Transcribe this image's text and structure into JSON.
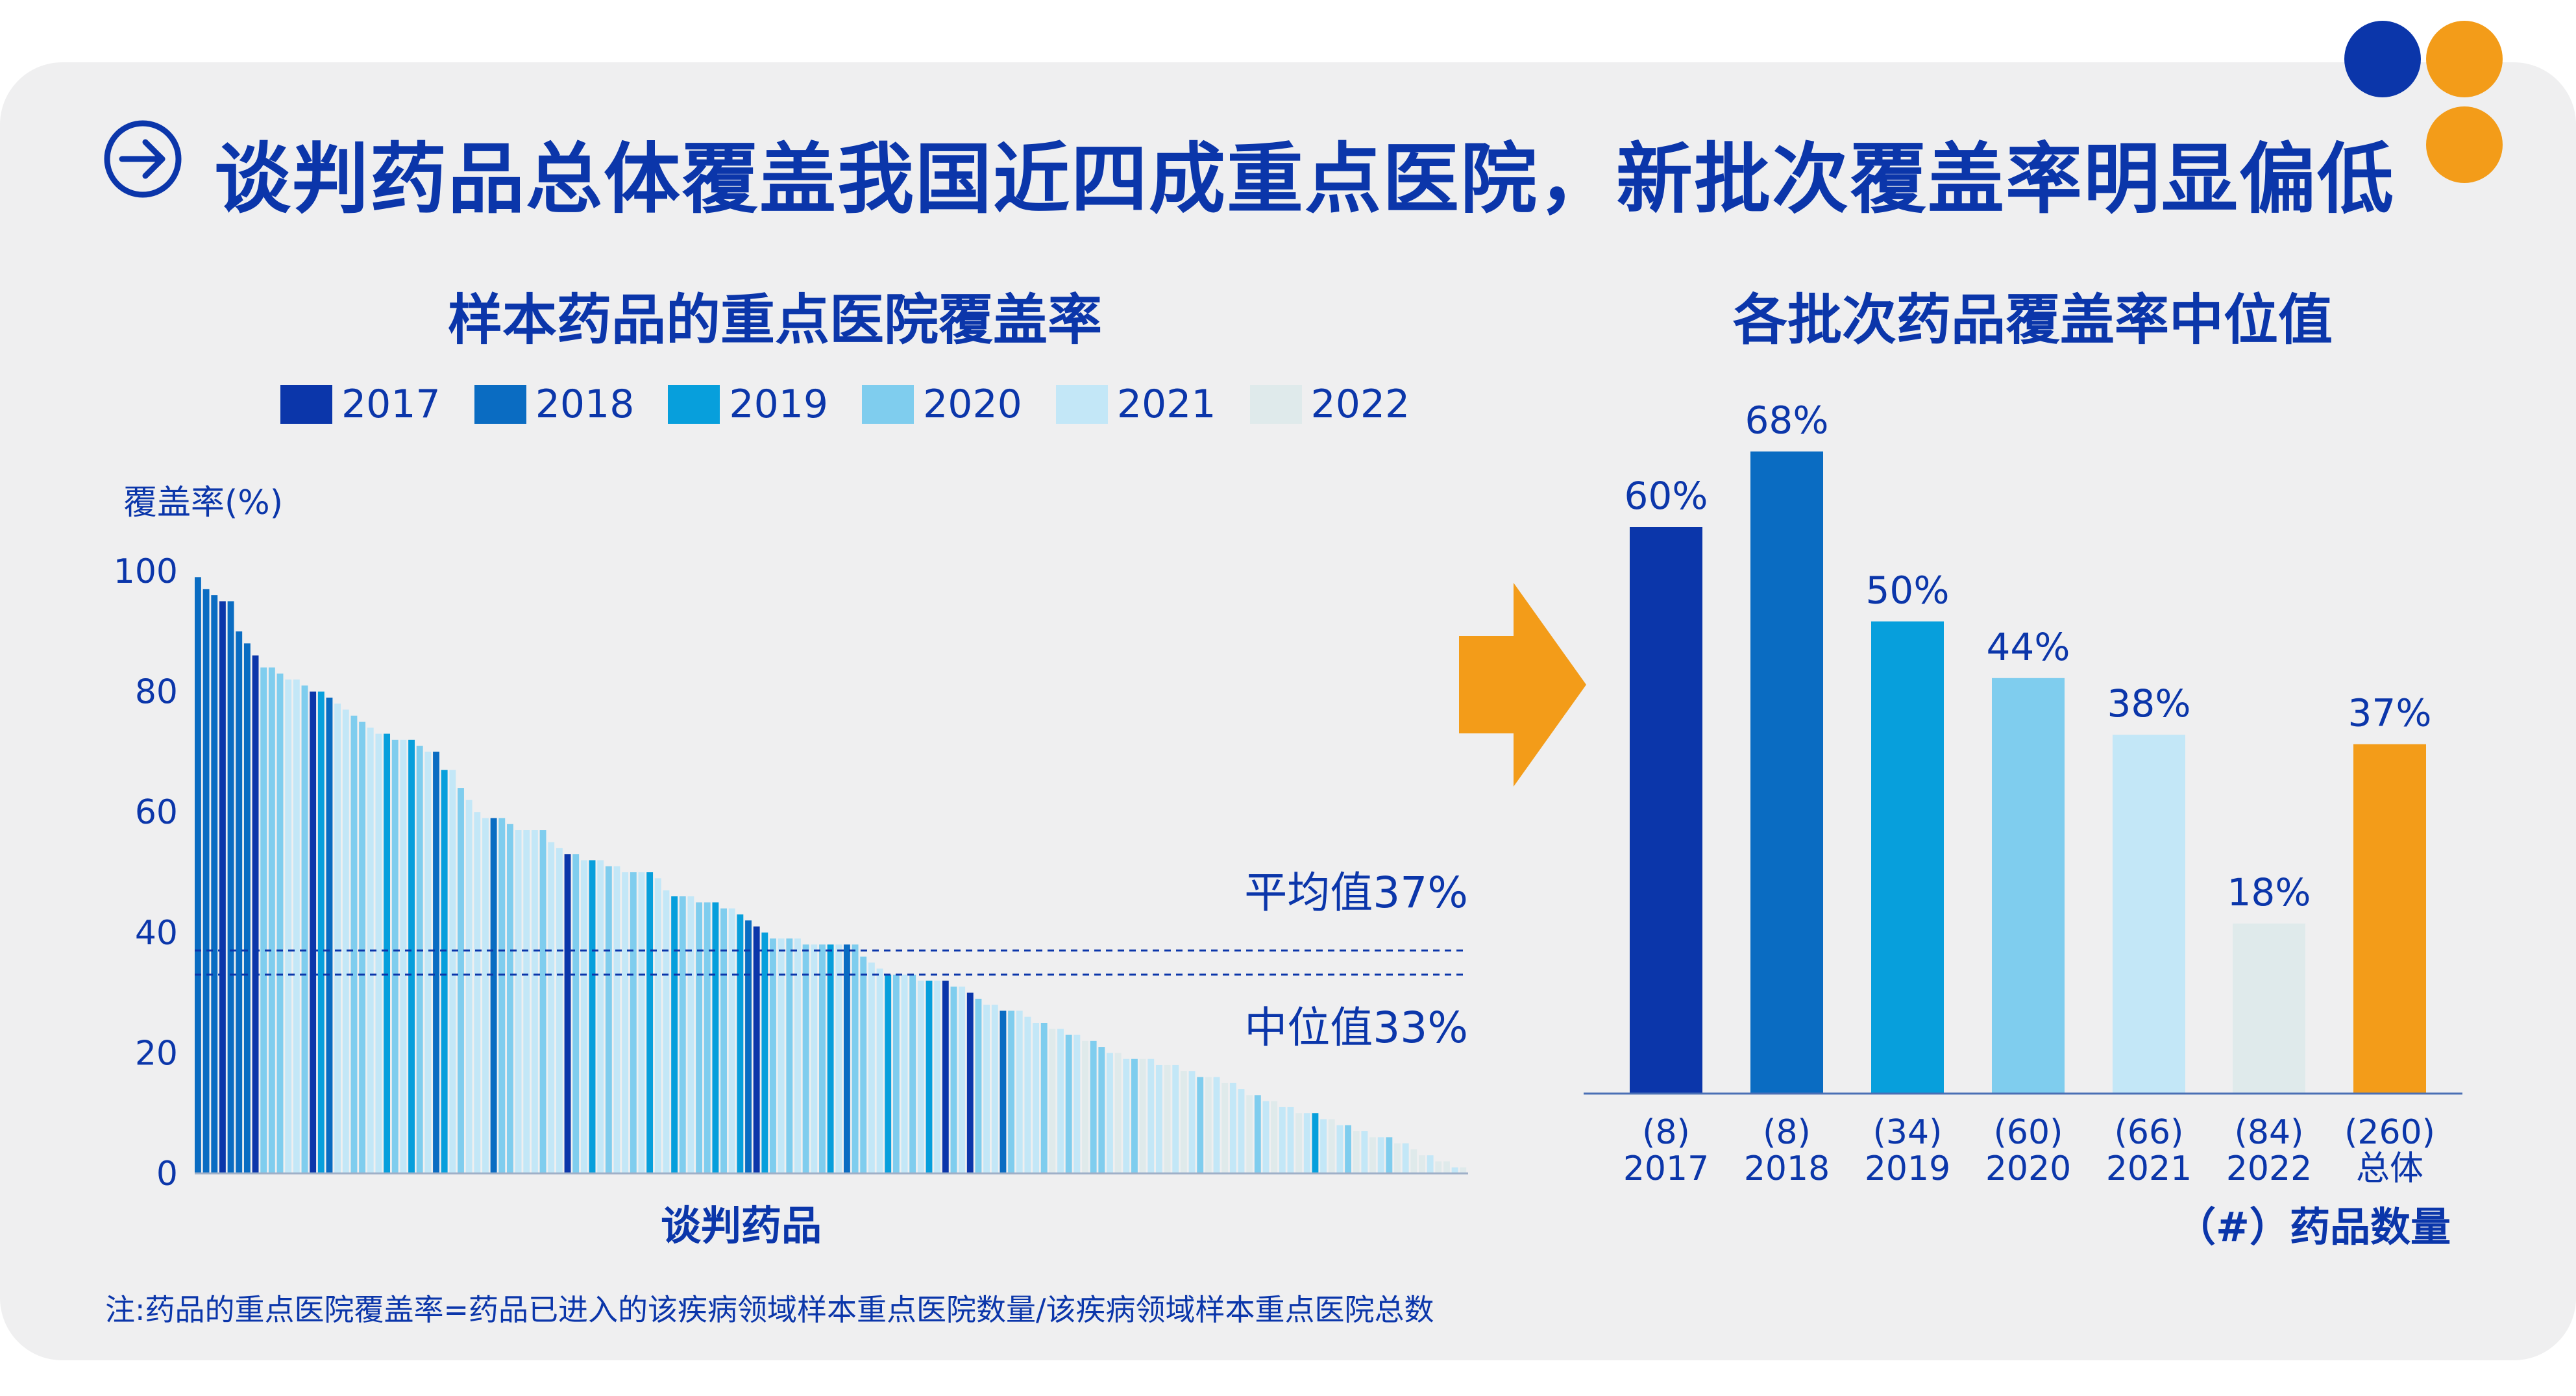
{
  "header": {
    "title": "谈判药品总体覆盖我国近四成重点医院，新批次覆盖率明显偏低",
    "arrow_icon": "arrow-right-circle-icon"
  },
  "colors": {
    "2017": "#0b36aa",
    "2018": "#0a6cc2",
    "2019": "#079fdc",
    "2020": "#7fcdee",
    "2021": "#c3e7f7",
    "2022": "#dfeaeb",
    "total": "#f39c19",
    "title": "#0b36aa",
    "dot_blue": "#0b36aa",
    "dot_orange": "#f39c19"
  },
  "left_chart": {
    "title": "样本药品的重点医院覆盖率",
    "legend": [
      "2017",
      "2018",
      "2019",
      "2020",
      "2021",
      "2022"
    ],
    "ylabel": "覆盖率(%)",
    "yticks": [
      "100",
      "80",
      "60",
      "40",
      "20",
      "0"
    ],
    "xlabel": "谈判药品",
    "ref_lines": [
      {
        "label": "平均值37%",
        "value": 37
      },
      {
        "label": "中位值33%",
        "value": 33
      }
    ]
  },
  "right_chart": {
    "title": "各批次药品覆盖率中位值",
    "xlabel": "（#）药品数量"
  },
  "chart_data": [
    {
      "type": "bar",
      "title": "样本药品的重点医院覆盖率",
      "ylabel": "覆盖率(%)",
      "xlabel": "谈判药品",
      "ylim": [
        0,
        100
      ],
      "yticks": [
        0,
        20,
        40,
        60,
        80,
        100
      ],
      "series_names": [
        "2017",
        "2018",
        "2019",
        "2020",
        "2021",
        "2022"
      ],
      "bars": [
        {
          "v": 99,
          "y": "2018"
        },
        {
          "v": 97,
          "y": "2018"
        },
        {
          "v": 96,
          "y": "2018"
        },
        {
          "v": 95,
          "y": "2017"
        },
        {
          "v": 95,
          "y": "2018"
        },
        {
          "v": 90,
          "y": "2018"
        },
        {
          "v": 88,
          "y": "2018"
        },
        {
          "v": 86,
          "y": "2017"
        },
        {
          "v": 84,
          "y": "2020"
        },
        {
          "v": 84,
          "y": "2020"
        },
        {
          "v": 83,
          "y": "2020"
        },
        {
          "v": 82,
          "y": "2021"
        },
        {
          "v": 82,
          "y": "2021"
        },
        {
          "v": 81,
          "y": "2020"
        },
        {
          "v": 80,
          "y": "2017"
        },
        {
          "v": 80,
          "y": "2019"
        },
        {
          "v": 79,
          "y": "2018"
        },
        {
          "v": 78,
          "y": "2021"
        },
        {
          "v": 77,
          "y": "2021"
        },
        {
          "v": 76,
          "y": "2020"
        },
        {
          "v": 75,
          "y": "2020"
        },
        {
          "v": 74,
          "y": "2021"
        },
        {
          "v": 73,
          "y": "2021"
        },
        {
          "v": 73,
          "y": "2019"
        },
        {
          "v": 72,
          "y": "2020"
        },
        {
          "v": 72,
          "y": "2021"
        },
        {
          "v": 72,
          "y": "2019"
        },
        {
          "v": 71,
          "y": "2020"
        },
        {
          "v": 70,
          "y": "2021"
        },
        {
          "v": 70,
          "y": "2018"
        },
        {
          "v": 67,
          "y": "2019"
        },
        {
          "v": 67,
          "y": "2021"
        },
        {
          "v": 64,
          "y": "2020"
        },
        {
          "v": 62,
          "y": "2021"
        },
        {
          "v": 60,
          "y": "2021"
        },
        {
          "v": 59,
          "y": "2021"
        },
        {
          "v": 59,
          "y": "2018"
        },
        {
          "v": 59,
          "y": "2020"
        },
        {
          "v": 58,
          "y": "2020"
        },
        {
          "v": 57,
          "y": "2021"
        },
        {
          "v": 57,
          "y": "2021"
        },
        {
          "v": 57,
          "y": "2021"
        },
        {
          "v": 57,
          "y": "2020"
        },
        {
          "v": 55,
          "y": "2021"
        },
        {
          "v": 54,
          "y": "2021"
        },
        {
          "v": 53,
          "y": "2017"
        },
        {
          "v": 53,
          "y": "2020"
        },
        {
          "v": 52,
          "y": "2021"
        },
        {
          "v": 52,
          "y": "2019"
        },
        {
          "v": 52,
          "y": "2021"
        },
        {
          "v": 51,
          "y": "2020"
        },
        {
          "v": 51,
          "y": "2021"
        },
        {
          "v": 50,
          "y": "2021"
        },
        {
          "v": 50,
          "y": "2020"
        },
        {
          "v": 50,
          "y": "2021"
        },
        {
          "v": 50,
          "y": "2019"
        },
        {
          "v": 49,
          "y": "2021"
        },
        {
          "v": 47,
          "y": "2021"
        },
        {
          "v": 46,
          "y": "2019"
        },
        {
          "v": 46,
          "y": "2020"
        },
        {
          "v": 46,
          "y": "2021"
        },
        {
          "v": 45,
          "y": "2020"
        },
        {
          "v": 45,
          "y": "2020"
        },
        {
          "v": 45,
          "y": "2019"
        },
        {
          "v": 44,
          "y": "2020"
        },
        {
          "v": 44,
          "y": "2021"
        },
        {
          "v": 43,
          "y": "2019"
        },
        {
          "v": 42,
          "y": "2018"
        },
        {
          "v": 41,
          "y": "2017"
        },
        {
          "v": 40,
          "y": "2019"
        },
        {
          "v": 39,
          "y": "2020"
        },
        {
          "v": 39,
          "y": "2021"
        },
        {
          "v": 39,
          "y": "2020"
        },
        {
          "v": 39,
          "y": "2021"
        },
        {
          "v": 38,
          "y": "2020"
        },
        {
          "v": 38,
          "y": "2021"
        },
        {
          "v": 38,
          "y": "2020"
        },
        {
          "v": 38,
          "y": "2019"
        },
        {
          "v": 38,
          "y": "2021"
        },
        {
          "v": 38,
          "y": "2018"
        },
        {
          "v": 38,
          "y": "2020"
        },
        {
          "v": 36,
          "y": "2020"
        },
        {
          "v": 35,
          "y": "2021"
        },
        {
          "v": 34,
          "y": "2021"
        },
        {
          "v": 33,
          "y": "2019"
        },
        {
          "v": 33,
          "y": "2020"
        },
        {
          "v": 33,
          "y": "2021"
        },
        {
          "v": 33,
          "y": "2020"
        },
        {
          "v": 32,
          "y": "2021"
        },
        {
          "v": 32,
          "y": "2019"
        },
        {
          "v": 32,
          "y": "2021"
        },
        {
          "v": 32,
          "y": "2017"
        },
        {
          "v": 31,
          "y": "2020"
        },
        {
          "v": 31,
          "y": "2021"
        },
        {
          "v": 30,
          "y": "2017"
        },
        {
          "v": 29,
          "y": "2020"
        },
        {
          "v": 28,
          "y": "2021"
        },
        {
          "v": 28,
          "y": "2021"
        },
        {
          "v": 27,
          "y": "2018"
        },
        {
          "v": 27,
          "y": "2020"
        },
        {
          "v": 27,
          "y": "2021"
        },
        {
          "v": 26,
          "y": "2021"
        },
        {
          "v": 25,
          "y": "2021"
        },
        {
          "v": 25,
          "y": "2020"
        },
        {
          "v": 24,
          "y": "2022"
        },
        {
          "v": 24,
          "y": "2021"
        },
        {
          "v": 23,
          "y": "2020"
        },
        {
          "v": 23,
          "y": "2021"
        },
        {
          "v": 22,
          "y": "2022"
        },
        {
          "v": 22,
          "y": "2020"
        },
        {
          "v": 21,
          "y": "2020"
        },
        {
          "v": 20,
          "y": "2021"
        },
        {
          "v": 20,
          "y": "2022"
        },
        {
          "v": 19,
          "y": "2021"
        },
        {
          "v": 19,
          "y": "2020"
        },
        {
          "v": 19,
          "y": "2022"
        },
        {
          "v": 19,
          "y": "2021"
        },
        {
          "v": 18,
          "y": "2021"
        },
        {
          "v": 18,
          "y": "2022"
        },
        {
          "v": 18,
          "y": "2021"
        },
        {
          "v": 17,
          "y": "2022"
        },
        {
          "v": 17,
          "y": "2021"
        },
        {
          "v": 16,
          "y": "2020"
        },
        {
          "v": 16,
          "y": "2022"
        },
        {
          "v": 16,
          "y": "2021"
        },
        {
          "v": 15,
          "y": "2022"
        },
        {
          "v": 15,
          "y": "2021"
        },
        {
          "v": 14,
          "y": "2021"
        },
        {
          "v": 13,
          "y": "2022"
        },
        {
          "v": 13,
          "y": "2020"
        },
        {
          "v": 12,
          "y": "2021"
        },
        {
          "v": 12,
          "y": "2022"
        },
        {
          "v": 11,
          "y": "2021"
        },
        {
          "v": 11,
          "y": "2021"
        },
        {
          "v": 10,
          "y": "2022"
        },
        {
          "v": 10,
          "y": "2021"
        },
        {
          "v": 10,
          "y": "2019"
        },
        {
          "v": 9,
          "y": "2021"
        },
        {
          "v": 9,
          "y": "2022"
        },
        {
          "v": 8,
          "y": "2021"
        },
        {
          "v": 8,
          "y": "2020"
        },
        {
          "v": 7,
          "y": "2022"
        },
        {
          "v": 7,
          "y": "2021"
        },
        {
          "v": 6,
          "y": "2022"
        },
        {
          "v": 6,
          "y": "2021"
        },
        {
          "v": 6,
          "y": "2020"
        },
        {
          "v": 5,
          "y": "2022"
        },
        {
          "v": 5,
          "y": "2021"
        },
        {
          "v": 4,
          "y": "2022"
        },
        {
          "v": 3,
          "y": "2022"
        },
        {
          "v": 3,
          "y": "2021"
        },
        {
          "v": 2,
          "y": "2022"
        },
        {
          "v": 2,
          "y": "2022"
        },
        {
          "v": 1,
          "y": "2021"
        },
        {
          "v": 1,
          "y": "2022"
        }
      ],
      "reference_lines": [
        {
          "name": "平均值37%",
          "value": 37
        },
        {
          "name": "中位值33%",
          "value": 33
        }
      ],
      "legend_position": "top"
    },
    {
      "type": "bar",
      "title": "各批次药品覆盖率中位值",
      "xlabel": "（#）药品数量",
      "ylim": [
        0,
        70
      ],
      "categories": [
        "2017",
        "2018",
        "2019",
        "2020",
        "2021",
        "2022",
        "总体"
      ],
      "counts": [
        "(8)",
        "(8)",
        "(34)",
        "(60)",
        "(66)",
        "(84)",
        "(260)"
      ],
      "values": [
        60,
        68,
        50,
        44,
        38,
        18,
        37
      ],
      "value_labels": [
        "60%",
        "68%",
        "50%",
        "44%",
        "38%",
        "18%",
        "37%"
      ],
      "bar_colors": [
        "2017",
        "2018",
        "2019",
        "2020",
        "2021",
        "2022",
        "total"
      ]
    }
  ],
  "footnote": "注:药品的重点医院覆盖率=药品已进入的该疾病领域样本重点医院数量/该疾病领域样本重点医院总数"
}
